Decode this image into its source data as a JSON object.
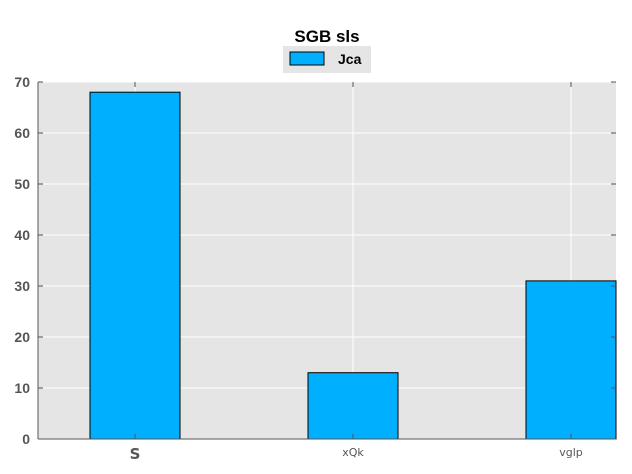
{
  "chart_data": {
    "type": "bar",
    "title": "SGB sls",
    "categories": [
      "S",
      "xQk",
      "vglp"
    ],
    "series": [
      {
        "name": "Jca",
        "values": [
          68,
          13,
          31
        ],
        "color": "#00b0ff"
      }
    ],
    "ylim": [
      0,
      70
    ],
    "yticks": [
      0,
      10,
      20,
      30,
      40,
      50,
      60,
      70
    ],
    "grid": true,
    "legend": "top-center",
    "background": "#e5e5e5"
  }
}
